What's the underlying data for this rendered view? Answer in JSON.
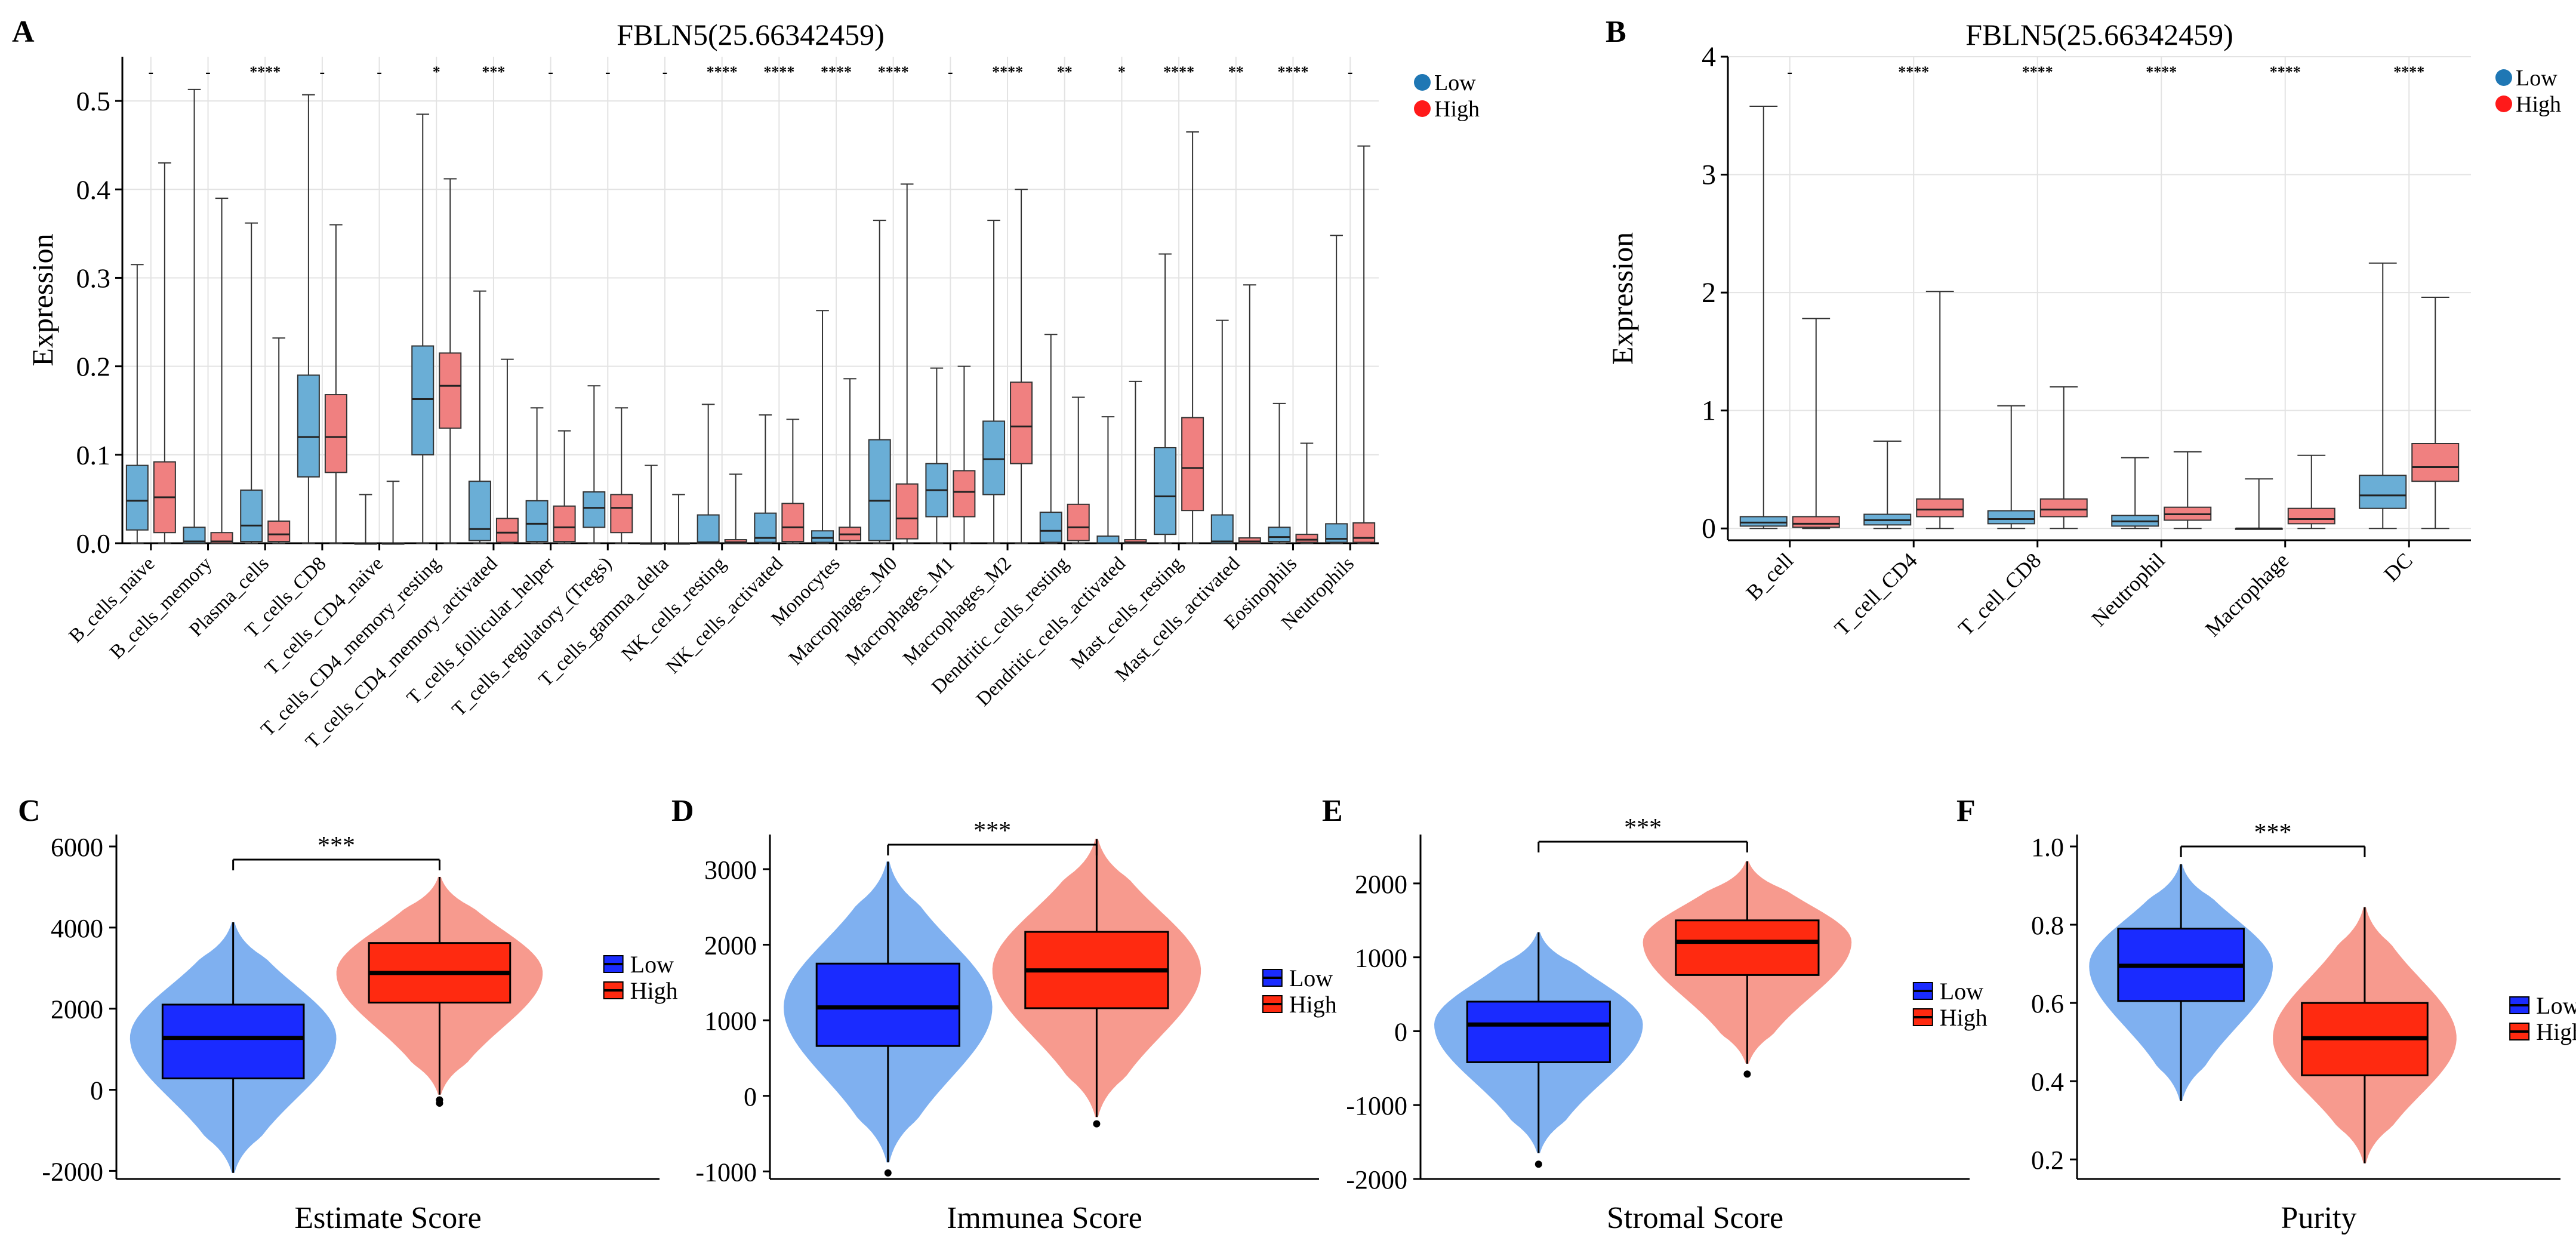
{
  "chart_data": [
    {
      "panel": "A",
      "type": "box",
      "title": "FBLN5(25.66342459)",
      "ylabel": "Expression",
      "ylim": [
        0,
        0.55
      ],
      "yticks": [
        "0.0",
        "0.1",
        "0.2",
        "0.3",
        "0.4",
        "0.5"
      ],
      "legend": [
        "Low",
        "High"
      ],
      "legend_colors": [
        "#1f77b4",
        "#ff1a1a"
      ],
      "box_colors": [
        "#6aaed6",
        "#f08080"
      ],
      "categories": [
        "B_cells_naive",
        "B_cells_memory",
        "Plasma_cells",
        "T_cells_CD8",
        "T_cells_CD4_naive",
        "T_cells_CD4_memory_resting",
        "T_cells_CD4_memory_activated",
        "T_cells_follicular_helper",
        "T_cells_regulatory_(Tregs)",
        "T_cells_gamma_delta",
        "NK_cells_resting",
        "NK_cells_activated",
        "Monocytes",
        "Macrophages_M0",
        "Macrophages_M1",
        "Macrophages_M2",
        "Dendritic_cells_resting",
        "Dendritic_cells_activated",
        "Mast_cells_resting",
        "Mast_cells_activated",
        "Eosinophils",
        "Neutrophils"
      ],
      "significance": [
        "-",
        "-",
        "****",
        "-",
        "-",
        "*",
        "***",
        "-",
        "-",
        "-",
        "****",
        "****",
        "****",
        "****",
        "-",
        "****",
        "**",
        "*",
        "****",
        "**",
        "****",
        "-"
      ],
      "series": [
        {
          "name": "Low",
          "boxes": [
            [
              0,
              0.015,
              0.048,
              0.088,
              0.315
            ],
            [
              0,
              0,
              0.002,
              0.018,
              0.513
            ],
            [
              0,
              0.002,
              0.02,
              0.06,
              0.362
            ],
            [
              0,
              0.075,
              0.12,
              0.19,
              0.507
            ],
            [
              0,
              0,
              0,
              0,
              0.055
            ],
            [
              0,
              0.1,
              0.163,
              0.223,
              0.485
            ],
            [
              0,
              0.003,
              0.016,
              0.07,
              0.285
            ],
            [
              0,
              0.002,
              0.022,
              0.048,
              0.153
            ],
            [
              0,
              0.018,
              0.04,
              0.058,
              0.178
            ],
            [
              0,
              0,
              0,
              0,
              0.088
            ],
            [
              0,
              0,
              0.001,
              0.032,
              0.157
            ],
            [
              0,
              0.001,
              0.006,
              0.034,
              0.145
            ],
            [
              0,
              0.001,
              0.006,
              0.014,
              0.263
            ],
            [
              0,
              0.003,
              0.048,
              0.117,
              0.365
            ],
            [
              0,
              0.03,
              0.06,
              0.09,
              0.198
            ],
            [
              0,
              0.055,
              0.095,
              0.138,
              0.365
            ],
            [
              0,
              0.001,
              0.014,
              0.035,
              0.236
            ],
            [
              0,
              0,
              0,
              0.008,
              0.143
            ],
            [
              0,
              0.01,
              0.053,
              0.108,
              0.327
            ],
            [
              0,
              0,
              0.002,
              0.032,
              0.252
            ],
            [
              0,
              0.002,
              0.007,
              0.018,
              0.158
            ],
            [
              0,
              0.001,
              0.005,
              0.022,
              0.348
            ]
          ]
        },
        {
          "name": "High",
          "boxes": [
            [
              0,
              0.012,
              0.052,
              0.092,
              0.43
            ],
            [
              0,
              0,
              0.002,
              0.012,
              0.39
            ],
            [
              0,
              0.002,
              0.01,
              0.025,
              0.232
            ],
            [
              0,
              0.08,
              0.12,
              0.168,
              0.36
            ],
            [
              0,
              0,
              0,
              0,
              0.07
            ],
            [
              0,
              0.13,
              0.178,
              0.215,
              0.412
            ],
            [
              0,
              0.001,
              0.012,
              0.028,
              0.208
            ],
            [
              0,
              0.002,
              0.018,
              0.042,
              0.127
            ],
            [
              0,
              0.012,
              0.04,
              0.055,
              0.153
            ],
            [
              0,
              0,
              0,
              0,
              0.055
            ],
            [
              0,
              0,
              0.001,
              0.004,
              0.078
            ],
            [
              0,
              0.002,
              0.018,
              0.045,
              0.14
            ],
            [
              0,
              0.003,
              0.01,
              0.018,
              0.186
            ],
            [
              0,
              0.005,
              0.028,
              0.067,
              0.406
            ],
            [
              0,
              0.03,
              0.058,
              0.082,
              0.2
            ],
            [
              0,
              0.09,
              0.132,
              0.182,
              0.4
            ],
            [
              0,
              0.003,
              0.018,
              0.044,
              0.165
            ],
            [
              0,
              0,
              0.001,
              0.004,
              0.183
            ],
            [
              0,
              0.037,
              0.085,
              0.142,
              0.465
            ],
            [
              0,
              0,
              0.002,
              0.006,
              0.292
            ],
            [
              0,
              0.001,
              0.004,
              0.01,
              0.113
            ],
            [
              0,
              0.001,
              0.006,
              0.023,
              0.449
            ]
          ]
        }
      ]
    },
    {
      "panel": "B",
      "type": "box",
      "title": "FBLN5(25.66342459)",
      "ylabel": "Expression",
      "ylim": [
        -0.1,
        4
      ],
      "yticks": [
        "0",
        "1",
        "2",
        "3",
        "4"
      ],
      "legend": [
        "Low",
        "High"
      ],
      "legend_colors": [
        "#1f77b4",
        "#ff1a1a"
      ],
      "box_colors": [
        "#6aaed6",
        "#f08080"
      ],
      "categories": [
        "B_cell",
        "T_cell_CD4",
        "T_cell_CD8",
        "Neutrophil",
        "Macrophage",
        "DC"
      ],
      "significance": [
        "-",
        "****",
        "****",
        "****",
        "****",
        "****"
      ],
      "series": [
        {
          "name": "Low",
          "boxes": [
            [
              0,
              0.02,
              0.05,
              0.1,
              3.58
            ],
            [
              0,
              0.03,
              0.07,
              0.12,
              0.74
            ],
            [
              0,
              0.04,
              0.08,
              0.15,
              1.04
            ],
            [
              0,
              0.02,
              0.06,
              0.11,
              0.6
            ],
            [
              0,
              0,
              0,
              0,
              0.42
            ],
            [
              0,
              0.17,
              0.28,
              0.45,
              2.25
            ]
          ]
        },
        {
          "name": "High",
          "boxes": [
            [
              0,
              0.01,
              0.04,
              0.1,
              1.78
            ],
            [
              0,
              0.1,
              0.16,
              0.25,
              2.01
            ],
            [
              0,
              0.1,
              0.16,
              0.25,
              1.2
            ],
            [
              0,
              0.07,
              0.12,
              0.18,
              0.65
            ],
            [
              0,
              0.04,
              0.08,
              0.17,
              0.62
            ],
            [
              0,
              0.4,
              0.52,
              0.72,
              1.96
            ]
          ]
        }
      ]
    },
    {
      "panel": "C",
      "type": "violin-box",
      "xlabel": "Estimate Score",
      "ylim": [
        -2200,
        6000
      ],
      "yticks": [
        -2000,
        0,
        2000,
        4000,
        6000
      ],
      "significance": "***",
      "legend": [
        "Low",
        "High"
      ],
      "box_colors": [
        "#1a2bff",
        "#ff2a10"
      ],
      "violin_colors": [
        "#7fb0f0",
        "#f79a8e"
      ],
      "groups": [
        {
          "name": "Low",
          "min": -2050,
          "q1": 280,
          "median": 1280,
          "q3": 2100,
          "max": 4130,
          "outliers": []
        },
        {
          "name": "High",
          "min": -120,
          "q1": 2150,
          "median": 2880,
          "q3": 3620,
          "max": 5250,
          "outliers": [
            -250,
            -330
          ]
        }
      ]
    },
    {
      "panel": "D",
      "type": "violin-box",
      "xlabel": "Immunea Score",
      "ylim": [
        -1100,
        3300
      ],
      "yticks": [
        -1000,
        0,
        1000,
        2000,
        3000
      ],
      "significance": "***",
      "legend": [
        "Low",
        "High"
      ],
      "box_colors": [
        "#1a2bff",
        "#ff2a10"
      ],
      "violin_colors": [
        "#7fb0f0",
        "#f79a8e"
      ],
      "groups": [
        {
          "name": "Low",
          "min": -880,
          "q1": 660,
          "median": 1170,
          "q3": 1750,
          "max": 3100,
          "outliers": [
            -1020
          ]
        },
        {
          "name": "High",
          "min": -280,
          "q1": 1160,
          "median": 1660,
          "q3": 2170,
          "max": 3400,
          "outliers": [
            -370
          ]
        }
      ]
    },
    {
      "panel": "E",
      "type": "violin-box",
      "xlabel": "Stromal Score",
      "ylim": [
        -2000,
        2500
      ],
      "yticks": [
        -2000,
        -1000,
        0,
        1000,
        2000
      ],
      "significance": "***",
      "legend": [
        "Low",
        "High"
      ],
      "box_colors": [
        "#1a2bff",
        "#ff2a10"
      ],
      "violin_colors": [
        "#7fb0f0",
        "#f79a8e"
      ],
      "groups": [
        {
          "name": "Low",
          "min": -1650,
          "q1": -420,
          "median": 90,
          "q3": 400,
          "max": 1340,
          "outliers": [
            -1800
          ]
        },
        {
          "name": "High",
          "min": -440,
          "q1": 760,
          "median": 1210,
          "q3": 1500,
          "max": 2300,
          "outliers": [
            -580
          ]
        }
      ]
    },
    {
      "panel": "F",
      "type": "violin-box",
      "xlabel": "Purity",
      "ylim": [
        0.15,
        1.0
      ],
      "yticks": [
        "0.2",
        "0.4",
        "0.6",
        "0.8",
        "1.0"
      ],
      "significance": "***",
      "legend": [
        "Low",
        "High"
      ],
      "box_colors": [
        "#1a2bff",
        "#ff2a10"
      ],
      "violin_colors": [
        "#7fb0f0",
        "#f79a8e"
      ],
      "groups": [
        {
          "name": "Low",
          "min": 0.35,
          "q1": 0.605,
          "median": 0.695,
          "q3": 0.79,
          "max": 0.955,
          "outliers": []
        },
        {
          "name": "High",
          "min": 0.19,
          "q1": 0.415,
          "median": 0.51,
          "q3": 0.6,
          "max": 0.845,
          "outliers": []
        }
      ]
    }
  ]
}
